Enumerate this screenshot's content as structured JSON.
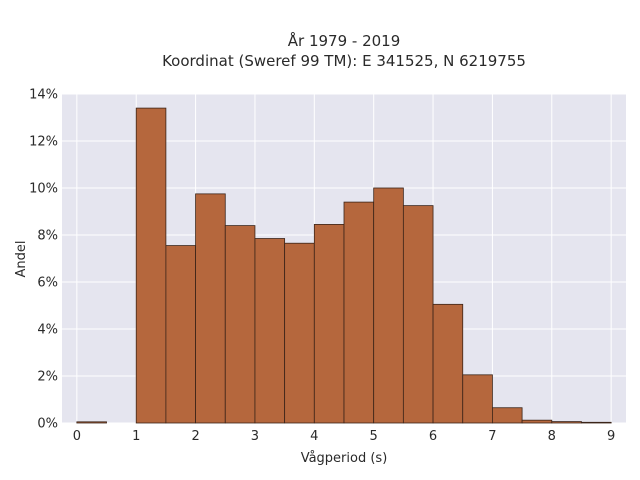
{
  "chart_data": {
    "type": "bar",
    "title_lines": [
      "År 1979 - 2019",
      "Koordinat (Sweref 99 TM): E 341525, N 6219755"
    ],
    "xlabel": "Vågperiod (s)",
    "ylabel": "Andel",
    "xlim": [
      -0.25,
      9.25
    ],
    "ylim": [
      0,
      14
    ],
    "x_ticks": [
      0,
      1,
      2,
      3,
      4,
      5,
      6,
      7,
      8,
      9
    ],
    "y_ticks": [
      0,
      2,
      4,
      6,
      8,
      10,
      12,
      14
    ],
    "y_tick_labels": [
      "0%",
      "2%",
      "4%",
      "6%",
      "8%",
      "10%",
      "12%",
      "14%"
    ],
    "bin_width": 0.5,
    "bin_starts": [
      0,
      0.5,
      1,
      1.5,
      2,
      2.5,
      3,
      3.5,
      4,
      4.5,
      5,
      5.5,
      6,
      6.5,
      7,
      7.5,
      8,
      8.5
    ],
    "values": [
      0.05,
      0,
      13.4,
      7.55,
      9.75,
      8.4,
      7.85,
      7.65,
      8.45,
      9.4,
      10.0,
      9.25,
      5.05,
      2.05,
      0.65,
      0.12,
      0.06,
      0.03
    ],
    "grid": true,
    "colors": {
      "plot_background": "#e5e5ef",
      "grid": "#ffffff",
      "bar_fill": "#b5673d",
      "bar_edge": "#3b2418"
    }
  }
}
